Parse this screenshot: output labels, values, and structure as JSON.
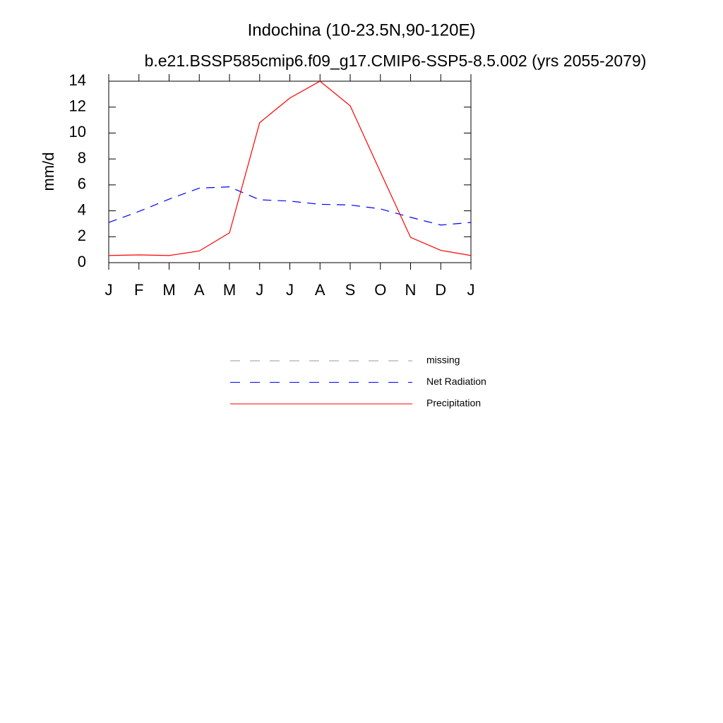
{
  "chart_data": {
    "type": "line",
    "title": "Indochina (10-23.5N,90-120E)",
    "subtitle": "b.e21.BSSP585cmip6.f09_g17.CMIP6-SSP5-8.5.002 (yrs 2055-2079)",
    "y_label": "mm/d",
    "categories": [
      "J",
      "F",
      "M",
      "A",
      "M",
      "J",
      "J",
      "A",
      "S",
      "O",
      "N",
      "D",
      "J"
    ],
    "series": [
      {
        "name": "missing",
        "color": "#999999",
        "dashed": true,
        "values": [
          null,
          null,
          null,
          null,
          null,
          null,
          null,
          null,
          null,
          null,
          null,
          null,
          null
        ]
      },
      {
        "name": "Net Radiation",
        "color": "#0000ff",
        "dashed": true,
        "values": [
          3.1,
          3.95,
          4.9,
          5.75,
          5.85,
          4.85,
          4.75,
          4.5,
          4.45,
          4.15,
          3.5,
          2.9,
          3.1
        ]
      },
      {
        "name": "Precipitation",
        "color": "#ff0000",
        "dashed": false,
        "values": [
          0.55,
          0.6,
          0.55,
          0.9,
          2.3,
          10.8,
          12.7,
          14.0,
          12.1,
          7.0,
          1.95,
          0.95,
          0.55
        ]
      }
    ],
    "ylim": [
      0,
      14
    ],
    "yticks": [
      0,
      2,
      4,
      6,
      8,
      10,
      12,
      14
    ],
    "grid": false
  }
}
